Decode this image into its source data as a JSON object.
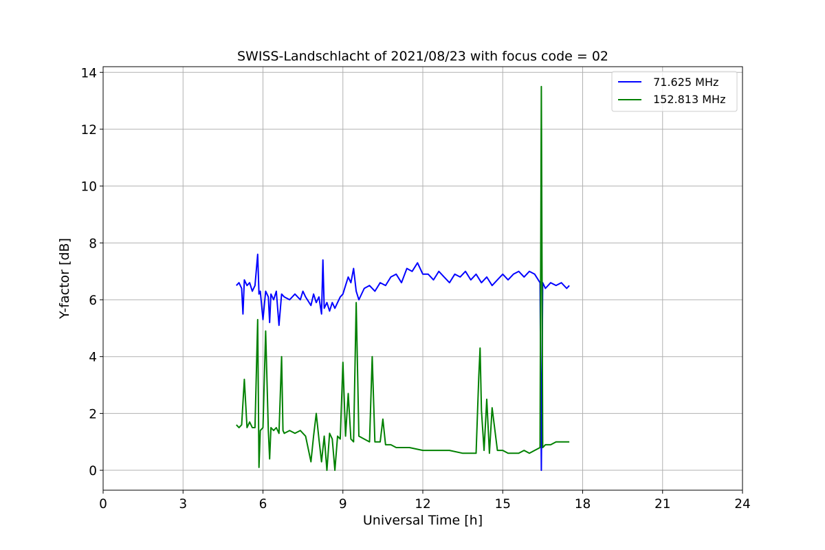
{
  "chart_data": {
    "type": "line",
    "title": "SWISS-Landschlacht of 2021/08/23 with focus code = 02",
    "xlabel": "Universal Time [h]",
    "ylabel": "Y-factor [dB]",
    "xlim": [
      0,
      24
    ],
    "ylim": [
      -0.7,
      14.2
    ],
    "xticks": [
      0,
      3,
      6,
      9,
      12,
      15,
      18,
      21,
      24
    ],
    "yticks": [
      0,
      2,
      4,
      6,
      8,
      10,
      12,
      14
    ],
    "grid": true,
    "legend_position": "top-right",
    "series": [
      {
        "name": " 71.625 MHz",
        "color": "#0000ff",
        "x": [
          5.0,
          5.1,
          5.2,
          5.25,
          5.3,
          5.4,
          5.5,
          5.6,
          5.7,
          5.8,
          5.85,
          5.9,
          6.0,
          6.1,
          6.2,
          6.25,
          6.3,
          6.4,
          6.5,
          6.6,
          6.7,
          6.8,
          7.0,
          7.2,
          7.4,
          7.5,
          7.6,
          7.8,
          7.9,
          8.0,
          8.1,
          8.2,
          8.25,
          8.3,
          8.4,
          8.5,
          8.6,
          8.7,
          8.8,
          8.9,
          9.0,
          9.1,
          9.2,
          9.3,
          9.4,
          9.5,
          9.6,
          9.8,
          10.0,
          10.2,
          10.4,
          10.6,
          10.8,
          11.0,
          11.2,
          11.4,
          11.6,
          11.8,
          12.0,
          12.2,
          12.4,
          12.6,
          12.8,
          13.0,
          13.2,
          13.4,
          13.6,
          13.8,
          14.0,
          14.2,
          14.4,
          14.6,
          14.8,
          15.0,
          15.2,
          15.4,
          15.6,
          15.8,
          16.0,
          16.2,
          16.4,
          16.45,
          16.5,
          16.6,
          16.8,
          17.0,
          17.2,
          17.4,
          17.5
        ],
        "y": [
          6.5,
          6.6,
          6.4,
          5.5,
          6.7,
          6.5,
          6.6,
          6.3,
          6.5,
          7.6,
          6.2,
          6.3,
          5.3,
          6.3,
          6.1,
          5.2,
          6.2,
          6.0,
          6.3,
          5.1,
          6.2,
          6.1,
          6.0,
          6.2,
          6.0,
          6.3,
          6.1,
          5.8,
          6.2,
          5.9,
          6.1,
          5.5,
          7.4,
          5.7,
          5.9,
          5.6,
          5.9,
          5.7,
          5.9,
          6.1,
          6.2,
          6.5,
          6.8,
          6.6,
          7.1,
          6.3,
          6.0,
          6.4,
          6.5,
          6.3,
          6.6,
          6.5,
          6.8,
          6.9,
          6.6,
          7.1,
          7.0,
          7.3,
          6.9,
          6.9,
          6.7,
          7.0,
          6.8,
          6.6,
          6.9,
          6.8,
          7.0,
          6.7,
          6.9,
          6.6,
          6.8,
          6.5,
          6.7,
          6.9,
          6.7,
          6.9,
          7.0,
          6.8,
          7.0,
          6.9,
          6.6,
          0.0,
          6.6,
          6.4,
          6.6,
          6.5,
          6.6,
          6.4,
          6.5
        ]
      },
      {
        "name": "152.813 MHz",
        "color": "#008000",
        "x": [
          5.0,
          5.1,
          5.2,
          5.3,
          5.4,
          5.5,
          5.6,
          5.7,
          5.8,
          5.85,
          5.9,
          6.0,
          6.1,
          6.2,
          6.25,
          6.3,
          6.4,
          6.5,
          6.6,
          6.7,
          6.75,
          6.8,
          7.0,
          7.2,
          7.4,
          7.6,
          7.8,
          7.9,
          8.0,
          8.1,
          8.2,
          8.3,
          8.4,
          8.5,
          8.6,
          8.7,
          8.8,
          8.9,
          9.0,
          9.1,
          9.2,
          9.3,
          9.4,
          9.5,
          9.6,
          9.8,
          10.0,
          10.1,
          10.2,
          10.4,
          10.5,
          10.6,
          10.8,
          11.0,
          11.5,
          12.0,
          12.5,
          13.0,
          13.5,
          14.0,
          14.1,
          14.15,
          14.2,
          14.3,
          14.4,
          14.5,
          14.6,
          14.8,
          15.0,
          15.2,
          15.4,
          15.6,
          15.8,
          16.0,
          16.2,
          16.4,
          16.45,
          16.5,
          16.6,
          16.8,
          17.0,
          17.2,
          17.4,
          17.5
        ],
        "y": [
          1.6,
          1.5,
          1.6,
          3.2,
          1.5,
          1.7,
          1.5,
          1.5,
          5.3,
          0.1,
          1.4,
          1.5,
          4.9,
          1.4,
          0.4,
          1.5,
          1.4,
          1.5,
          1.3,
          4.0,
          1.4,
          1.3,
          1.4,
          1.3,
          1.4,
          1.2,
          0.3,
          1.2,
          2.0,
          1.1,
          0.3,
          1.2,
          0.0,
          1.3,
          1.1,
          0.0,
          1.2,
          1.1,
          3.8,
          1.2,
          2.7,
          1.1,
          1.0,
          5.9,
          1.2,
          1.1,
          1.0,
          4.0,
          1.0,
          1.0,
          1.8,
          0.9,
          0.9,
          0.8,
          0.8,
          0.7,
          0.7,
          0.7,
          0.6,
          0.6,
          3.3,
          4.3,
          2.1,
          0.7,
          2.5,
          0.6,
          2.2,
          0.7,
          0.7,
          0.6,
          0.6,
          0.6,
          0.7,
          0.6,
          0.7,
          0.8,
          13.5,
          0.8,
          0.9,
          0.9,
          1.0,
          1.0,
          1.0,
          1.0
        ]
      }
    ]
  }
}
